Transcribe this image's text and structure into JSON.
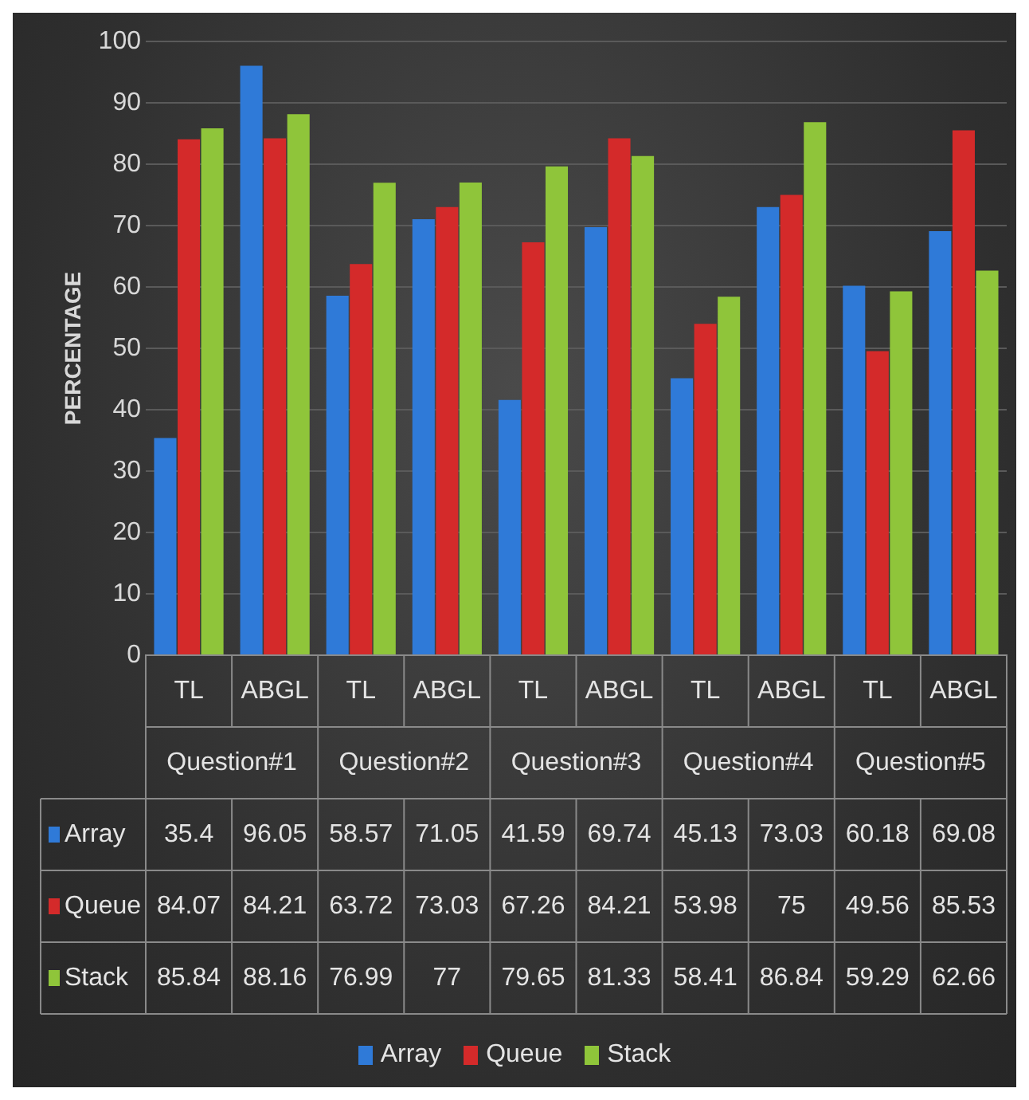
{
  "chart_data": {
    "type": "bar",
    "ylabel": "PERCENTAGE",
    "categories": [
      "TL",
      "ABGL",
      "TL",
      "ABGL",
      "TL",
      "ABGL",
      "TL",
      "ABGL",
      "TL",
      "ABGL"
    ],
    "annotations": [
      "Question#1",
      "Question#2",
      "Question#3",
      "Question#4",
      "Question#5"
    ],
    "series": [
      {
        "name": "Array",
        "color": "#2f7ad8",
        "values": [
          35.4,
          96.05,
          58.57,
          71.05,
          41.59,
          69.74,
          45.13,
          73.03,
          60.18,
          69.08
        ]
      },
      {
        "name": "Queue",
        "color": "#d42a2a",
        "values": [
          84.07,
          84.21,
          63.72,
          73.03,
          67.26,
          84.21,
          53.98,
          75,
          49.56,
          85.53
        ]
      },
      {
        "name": "Stack",
        "color": "#8fc53a",
        "values": [
          85.84,
          88.16,
          76.99,
          77,
          79.65,
          81.33,
          58.41,
          86.84,
          59.29,
          62.66
        ]
      }
    ],
    "ylim": [
      0,
      100
    ],
    "yticks": [
      0,
      10,
      20,
      30,
      40,
      50,
      60,
      70,
      80,
      90,
      100
    ],
    "grid": "y",
    "legend": "bottom",
    "data_labels": true
  }
}
